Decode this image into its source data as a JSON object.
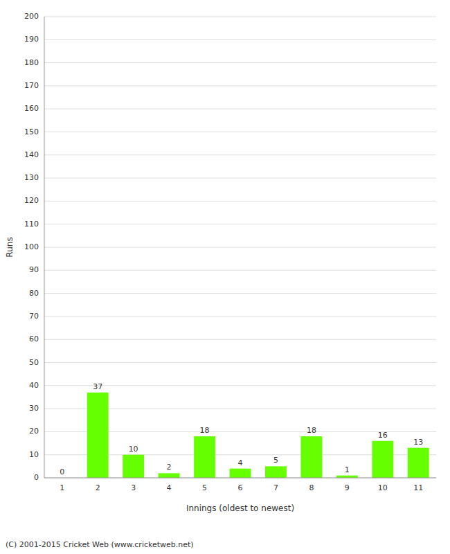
{
  "chart_data": {
    "type": "bar",
    "xlabel": "Innings (oldest to newest)",
    "ylabel": "Runs",
    "categories": [
      "1",
      "2",
      "3",
      "4",
      "5",
      "6",
      "7",
      "8",
      "9",
      "10",
      "11"
    ],
    "values": [
      0,
      37,
      10,
      2,
      18,
      4,
      5,
      18,
      1,
      16,
      13
    ],
    "color": "#66ff00",
    "ylim": [
      0,
      200
    ],
    "yticks": [
      0,
      10,
      20,
      30,
      40,
      50,
      60,
      70,
      80,
      90,
      100,
      110,
      120,
      130,
      140,
      150,
      160,
      170,
      180,
      190,
      200
    ],
    "grid": true,
    "data_labels": true,
    "annotations": [
      "(C) 2001-2015 Cricket Web (www.cricketweb.net)"
    ]
  }
}
